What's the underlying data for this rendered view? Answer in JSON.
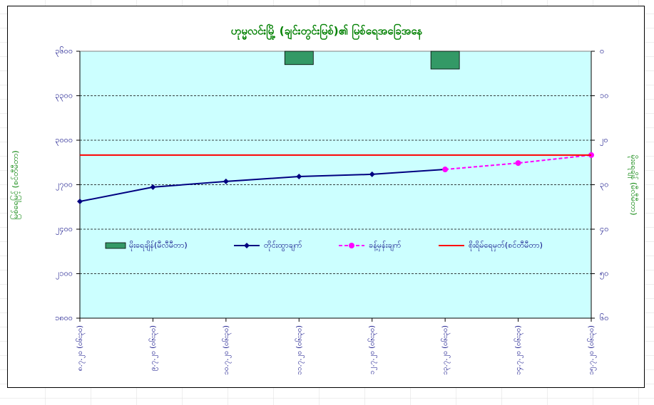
{
  "chart_data": {
    "type": "line",
    "title": "ဟုမ္မလင်းမြို့ (ချင်းတွင်းမြစ်)၏ မြစ်ရေအခြေအနေ",
    "ylabel": "မြစ်ရေမြင့် (စင်တီမီတာ)",
    "y2label": "မိုးရေချိန် (မီလီမီတာ)",
    "categories": [
      "၈.၇.၂၀ (၀၆း၃၀)",
      "၉.၇.၂၀ (၀၆း၃၀)",
      "၁၀.၇.၂၀ (၀၆း၃၀)",
      "၁၁.၇.၂၀ (၀၆း၃၀)",
      "၁၂.၇.၂၀ (၀၆း၃၀)",
      "၁၃.၇.၂၀ (၀၆း၃၀)",
      "၁၄.၇.၂၀ (၀၆း၃၀)",
      "၁၅.၇.၂၀ (၀၆း၃၀)"
    ],
    "ylim": [
      1800,
      3600
    ],
    "yticks": [
      {
        "value": 1800,
        "label": "၁၈၀၀"
      },
      {
        "value": 2100,
        "label": "၂၁၀၀"
      },
      {
        "value": 2400,
        "label": "၂၄၀၀"
      },
      {
        "value": 2700,
        "label": "၂၇၀၀"
      },
      {
        "value": 3000,
        "label": "၃၀၀၀"
      },
      {
        "value": 3300,
        "label": "၃၃၀၀"
      },
      {
        "value": 3600,
        "label": "၃၆၀၀"
      }
    ],
    "y2lim": [
      60,
      0
    ],
    "y2ticks": [
      {
        "value": 0,
        "label": "၀"
      },
      {
        "value": 10,
        "label": "၁၀"
      },
      {
        "value": 20,
        "label": "၂၀"
      },
      {
        "value": 30,
        "label": "၃၀"
      },
      {
        "value": 40,
        "label": "၄၀"
      },
      {
        "value": 50,
        "label": "၅၀"
      },
      {
        "value": 60,
        "label": "၆၀"
      }
    ],
    "grid": true,
    "series": [
      {
        "name": "မိုးရေချိန်(မီလီမီတာ)",
        "kind": "bar",
        "axis": "y2",
        "color": "#339966",
        "values": [
          null,
          null,
          null,
          3,
          null,
          4,
          null,
          null
        ]
      },
      {
        "name": "တိုင်းထွာချက်",
        "kind": "line",
        "color": "#000080",
        "marker": "diamond",
        "values": [
          2587,
          2684,
          2722,
          2755,
          2770,
          2803,
          null,
          null
        ]
      },
      {
        "name": "ခန့်မှန်းချက်",
        "kind": "line",
        "color": "#ff00ff",
        "dashed": true,
        "marker": "circle",
        "values": [
          null,
          null,
          null,
          null,
          null,
          2803,
          2846,
          2900
        ]
      },
      {
        "name": "စိုးရိမ်ရေမှတ်(စင်တီမီတာ)",
        "kind": "line",
        "color": "#ff0000",
        "values": [
          2900,
          2900,
          2900,
          2900,
          2900,
          2900,
          2900,
          2900
        ]
      }
    ]
  }
}
